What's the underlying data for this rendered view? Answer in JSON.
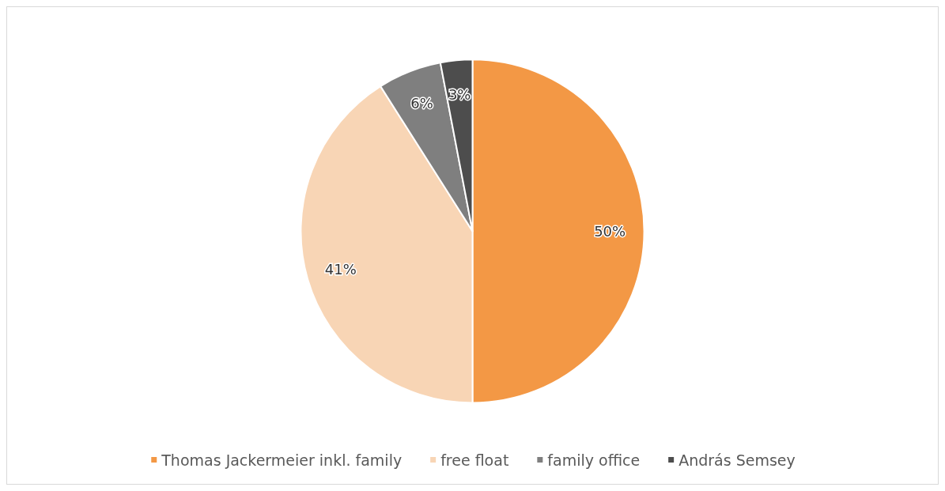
{
  "chart_data": {
    "type": "pie",
    "categories": [
      "Thomas Jackermeier inkl. family",
      "free float",
      "family office",
      "András Semsey"
    ],
    "values": [
      50,
      41,
      6,
      3
    ],
    "colors": [
      "#f39845",
      "#f8d5b5",
      "#7f7f7f",
      "#4d4d4d"
    ],
    "value_labels": [
      "50%",
      "41%",
      "6%",
      "3%"
    ],
    "legend": "bottom"
  }
}
